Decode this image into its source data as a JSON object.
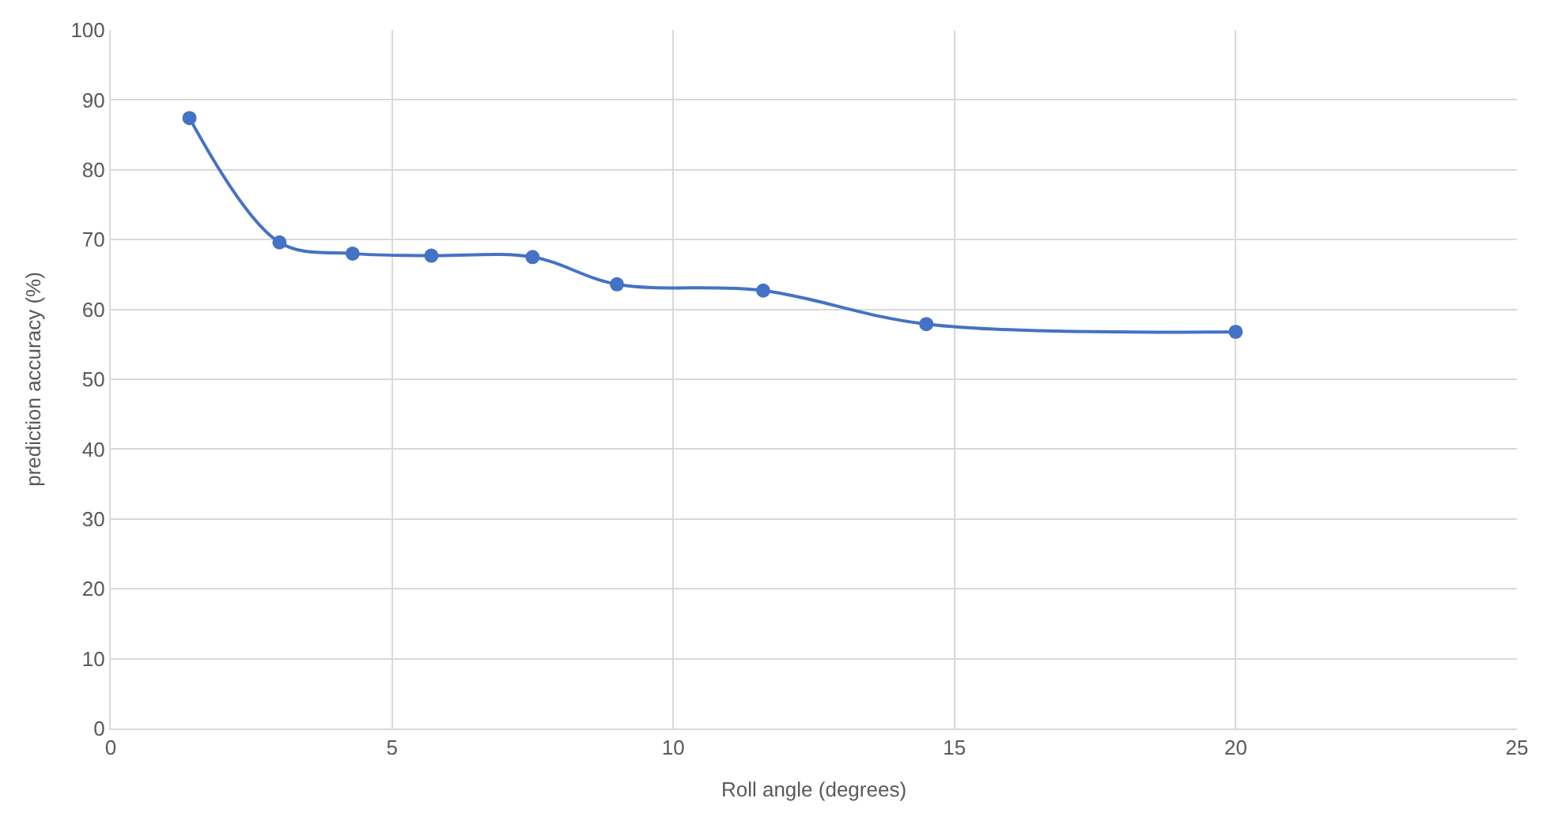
{
  "chart_data": {
    "type": "line",
    "xlabel": "Roll angle (degrees)",
    "ylabel": "prediction accuracy (%)",
    "x": [
      1.4,
      3,
      4.3,
      5.7,
      7.5,
      9,
      11.6,
      14.5,
      20
    ],
    "series": [
      {
        "color": "#4472c4",
        "values": [
          87.4,
          69.6,
          68.0,
          67.7,
          67.5,
          63.6,
          62.7,
          57.9,
          56.8
        ]
      }
    ],
    "xlim": [
      0,
      25
    ],
    "xticks": [
      0,
      5,
      10,
      15,
      20,
      25
    ],
    "ylim": [
      0,
      100
    ],
    "yticks": [
      0,
      10,
      20,
      30,
      40,
      50,
      60,
      70,
      80,
      90,
      100
    ],
    "grid": true,
    "marker": "circle",
    "line_style": "solid",
    "legend": false
  }
}
